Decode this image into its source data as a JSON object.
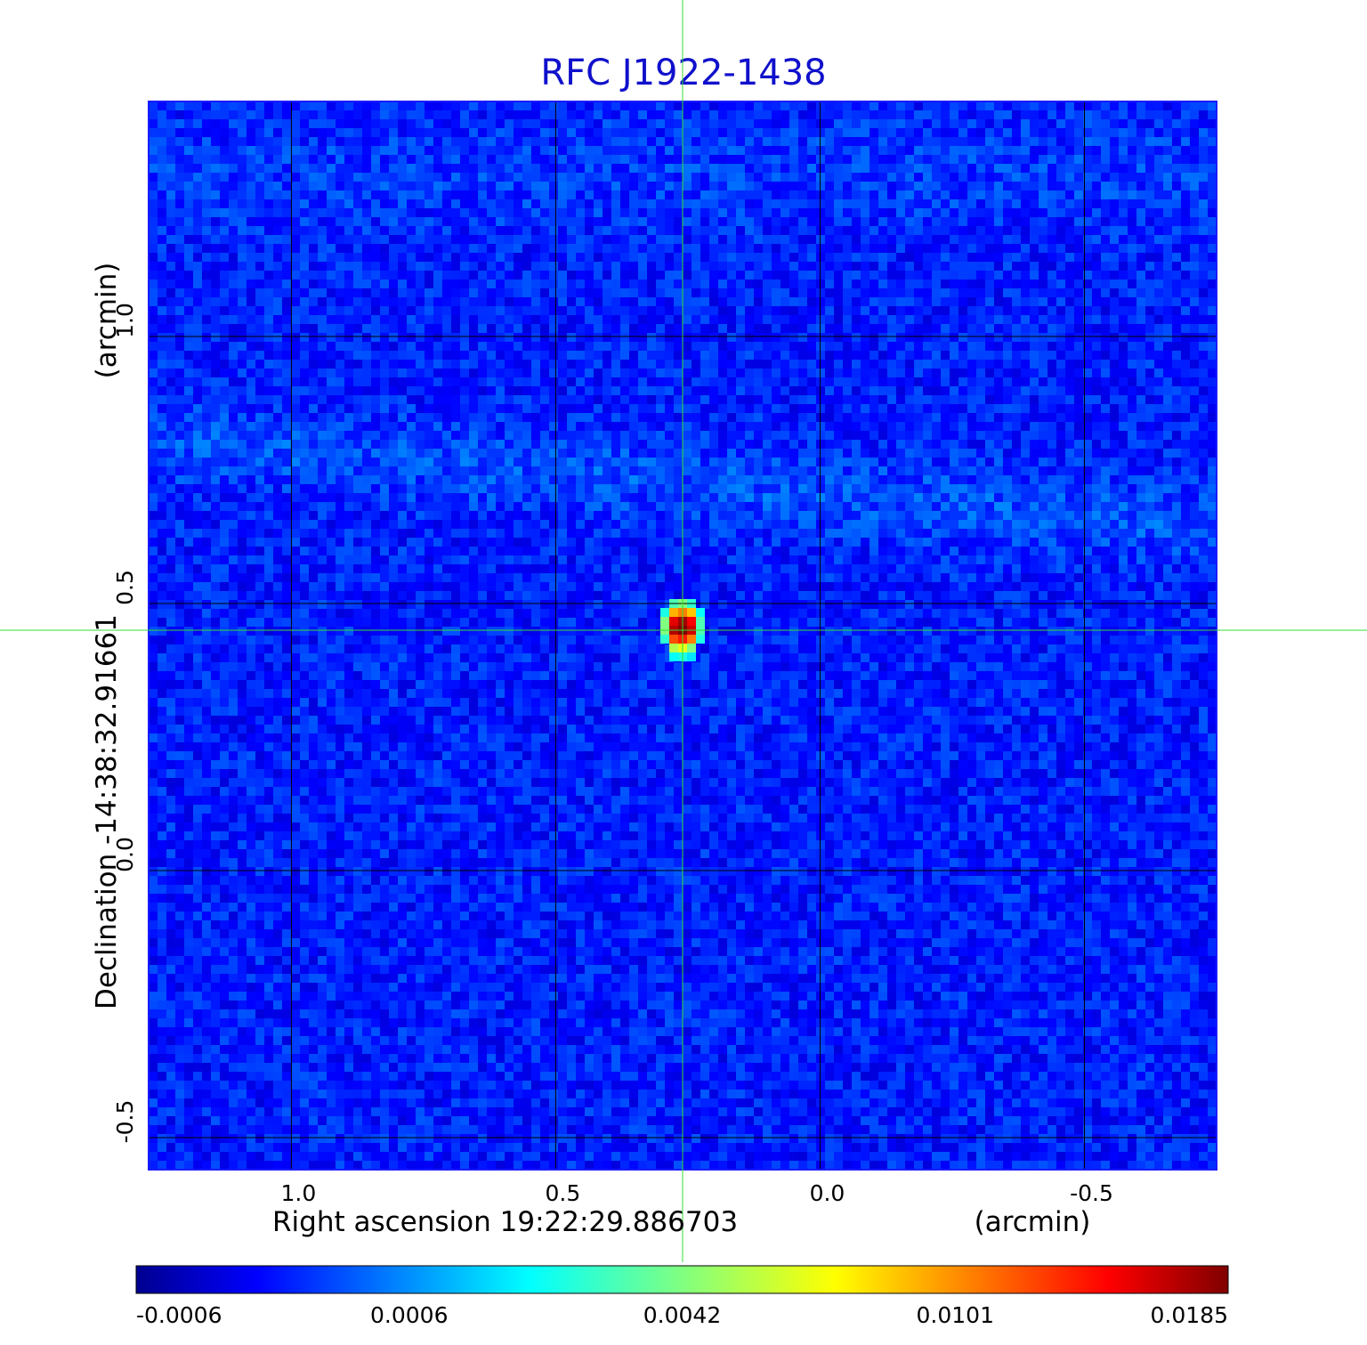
{
  "chart_data": {
    "type": "heatmap",
    "title": "RFC J1922-1438",
    "xlabel": "Right ascension  19:22:29.886703",
    "xunit": "(arcmin)",
    "ylabel": "Declination  -14:38:32.91661",
    "yunit": "(arcmin)",
    "xlim": [
      1.27,
      -0.75
    ],
    "ylim": [
      -0.56,
      1.44
    ],
    "x_ticks": [
      1.0,
      0.5,
      0.0,
      -0.5
    ],
    "x_tick_labels": [
      "1.0",
      "0.5",
      "0.0",
      "-0.5"
    ],
    "y_ticks": [
      1.0,
      0.5,
      0.0,
      -0.5
    ],
    "y_tick_labels": [
      "1.0",
      "0.5",
      "0.0",
      "-0.5"
    ],
    "grid": true,
    "crosshair": {
      "x": 0.26,
      "y": 0.45
    },
    "source": {
      "x": 0.26,
      "y": 0.45,
      "peak": 0.0185
    },
    "colorbar": {
      "colormap": "jet",
      "tick_labels": [
        "-0.0006",
        "0.0006",
        "0.0042",
        "0.0101",
        "0.0185"
      ]
    },
    "colors": {
      "title": "#1010cc",
      "frame": "#1a1aff",
      "grid": "#000000",
      "crosshair": "#33dd33"
    }
  }
}
